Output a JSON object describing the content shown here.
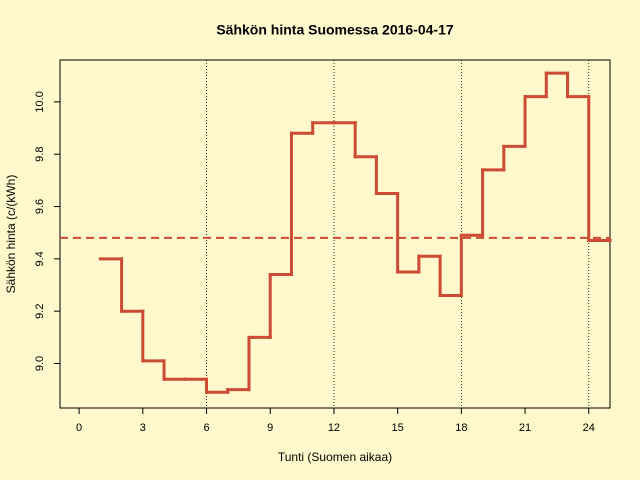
{
  "chart_data": {
    "type": "step",
    "title": "Sähkön hinta Suomessa 2016-04-17",
    "x_label": "Tunti (Suomen aikaa)",
    "y_label": "Sähkön hinta (c/(kWh)",
    "x": [
      1,
      2,
      3,
      4,
      5,
      6,
      7,
      8,
      9,
      10,
      11,
      12,
      13,
      14,
      15,
      16,
      17,
      18,
      19,
      20,
      21,
      22,
      23,
      24
    ],
    "series": [
      {
        "color": "#cd4b32",
        "values": [
          9.4,
          9.2,
          9.01,
          8.94,
          8.94,
          8.89,
          8.9,
          9.1,
          9.34,
          9.88,
          9.92,
          9.92,
          9.79,
          9.65,
          9.35,
          9.41,
          9.26,
          9.49,
          9.74,
          9.83,
          10.02,
          10.11,
          10.02,
          9.47
        ]
      }
    ],
    "mean": 9.48,
    "mean_color": "#cd4b32",
    "vlines": [
      6,
      12,
      18,
      24
    ],
    "xlim": [
      -0.9,
      25
    ],
    "ylim": [
      8.83,
      10.16
    ],
    "xticks": [
      0,
      3,
      6,
      9,
      12,
      15,
      18,
      21,
      24
    ],
    "yticks": [
      {
        "value": 9,
        "label": "9.0"
      },
      9.2,
      9.4,
      9.6,
      9.8,
      {
        "value": 10,
        "label": "10.0"
      }
    ]
  }
}
